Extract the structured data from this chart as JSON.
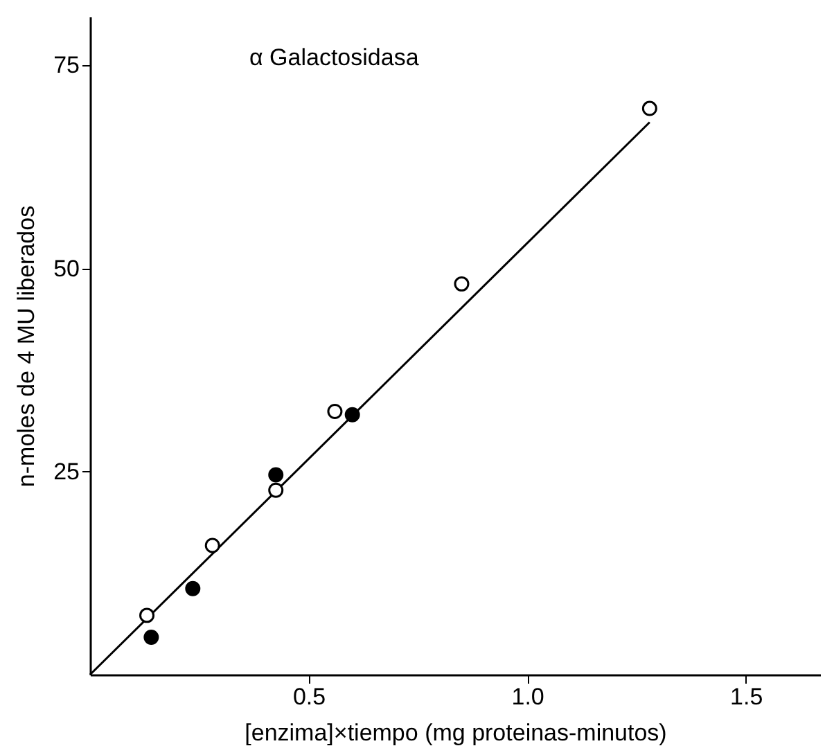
{
  "chart_data": {
    "type": "scatter",
    "xlabel": "[enzima]×tiempo (mg proteinas-minutos)",
    "ylabel": "n-moles de 4 MU liberados",
    "annotations": [
      "α Galactosidasa"
    ],
    "xlim": [
      0,
      1.67
    ],
    "ylim": [
      0,
      81
    ],
    "xticks": [
      {
        "value": 0.5,
        "label": "0.5"
      },
      {
        "value": 1,
        "label": "1.0"
      },
      {
        "value": 1.5,
        "label": "1.5"
      }
    ],
    "yticks": [
      25,
      50,
      75
    ],
    "grid": false,
    "marker": "circle",
    "series": [
      {
        "type": "line",
        "marker": "none",
        "color": "#000000",
        "x": [
          0,
          1.28
        ],
        "values": [
          0,
          68
        ]
      },
      {
        "color": "#ffffff",
        "x": [
          0.13,
          0.28,
          0.425,
          0.56,
          0.85,
          1.28
        ],
        "values": [
          7.3,
          15.9,
          22.7,
          32.4,
          48.1,
          69.7
        ]
      },
      {
        "color": "#000000",
        "x": [
          0.14,
          0.235,
          0.425,
          0.6
        ],
        "values": [
          4.6,
          10.6,
          24.6,
          32
        ]
      }
    ]
  }
}
